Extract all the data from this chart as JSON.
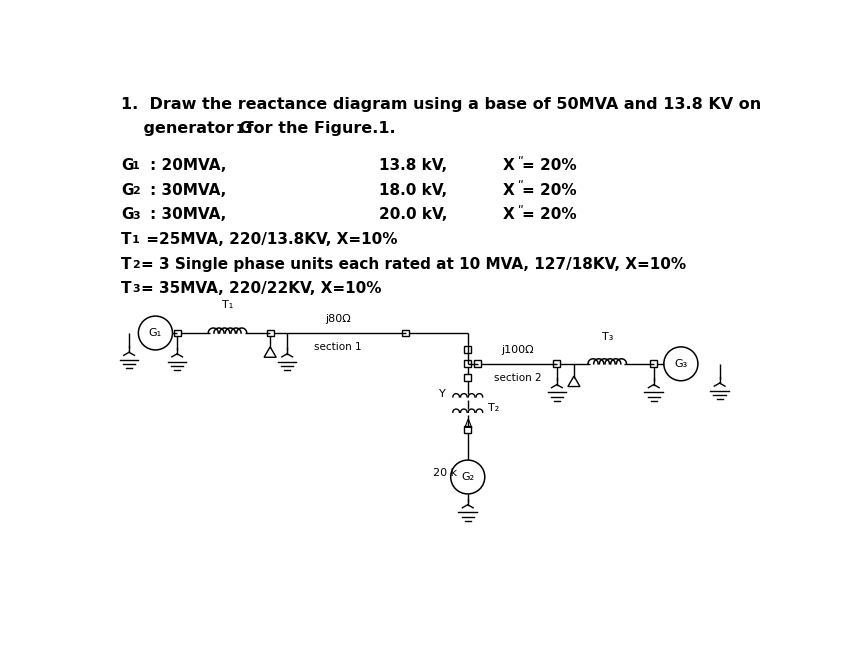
{
  "bg_color": "#ffffff",
  "text_color": "#000000",
  "figsize": [
    8.59,
    6.64
  ],
  "dpi": 100,
  "title1": "1.  Draw the reactance diagram using a base of 50MVA and 13.8 KV on",
  "title2": "    generator G",
  "title2b": " for the Figure.1.",
  "g1_label": "G",
  "g1_sub": "1",
  "g1_mva": "  : 20MVA,",
  "g1_kv": "13.8 kV,",
  "g1_x": "X",
  "g1_xval": " = 20%",
  "g2_label": "G",
  "g2_sub": "2",
  "g2_mva": "  : 30MVA,",
  "g2_kv": "18.0 kV,",
  "g2_x": "X",
  "g2_xval": " = 20%",
  "g3_label": "G",
  "g3_sub": "3",
  "g3_mva": "  : 30MVA,",
  "g3_kv": "20.0 kV,",
  "g3_x": "X",
  "g3_xval": " = 20%",
  "t1_text": "T",
  "t1_sub": "1",
  "t1_rest": " =25MVA, 220/13.8KV, X=10%",
  "t2_text": "T",
  "t2_sub": "2",
  "t2_rest": "= 3 Single phase units each rated at 10 MVA, 127/18KV, X=10%",
  "t3_text": "T",
  "t3_sub": "3",
  "t3_rest": "= 35MVA, 220/22KV, X=10%"
}
